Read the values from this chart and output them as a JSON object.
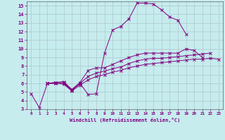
{
  "xlabel": "Windchill (Refroidissement éolien,°C)",
  "xlim": [
    -0.5,
    23.5
  ],
  "ylim": [
    3,
    15.5
  ],
  "xticks": [
    0,
    1,
    2,
    3,
    4,
    5,
    6,
    7,
    8,
    9,
    10,
    11,
    12,
    13,
    14,
    15,
    16,
    17,
    18,
    19,
    20,
    21,
    22,
    23
  ],
  "yticks": [
    3,
    4,
    5,
    6,
    7,
    8,
    9,
    10,
    11,
    12,
    13,
    14,
    15
  ],
  "bg_color": "#c6ecee",
  "line_color": "#800080",
  "grid_color": "#b0c8cc",
  "series": [
    {
      "x": [
        0,
        1,
        2,
        3,
        4,
        5,
        6,
        7,
        8,
        9,
        10,
        11,
        12,
        13,
        14,
        15,
        16,
        17,
        18,
        19
      ],
      "y": [
        4.8,
        3.2,
        6.0,
        6.1,
        6.1,
        5.2,
        6.0,
        4.7,
        4.8,
        9.5,
        12.2,
        12.6,
        13.5,
        15.3,
        15.3,
        15.2,
        14.5,
        13.7,
        13.3,
        11.7
      ]
    },
    {
      "x": [
        2,
        3,
        4,
        5,
        6,
        7,
        8,
        9,
        10,
        11,
        12,
        13,
        14,
        15,
        16,
        17,
        18,
        19,
        20,
        21
      ],
      "y": [
        6.0,
        6.1,
        6.2,
        5.3,
        6.1,
        7.5,
        7.8,
        7.8,
        8.2,
        8.6,
        9.0,
        9.3,
        9.5,
        9.5,
        9.5,
        9.5,
        9.5,
        10.0,
        9.8,
        9.0
      ]
    },
    {
      "x": [
        2,
        3,
        4,
        5,
        6,
        7,
        8,
        9,
        10,
        11,
        12,
        13,
        14,
        15,
        16,
        17,
        18,
        19,
        20,
        21,
        22
      ],
      "y": [
        6.0,
        6.0,
        6.0,
        5.2,
        6.0,
        6.8,
        7.2,
        7.4,
        7.7,
        7.9,
        8.3,
        8.6,
        8.8,
        8.9,
        8.9,
        9.0,
        9.1,
        9.2,
        9.3,
        9.4,
        9.5
      ]
    },
    {
      "x": [
        2,
        3,
        4,
        5,
        6,
        7,
        8,
        9,
        10,
        11,
        12,
        13,
        14,
        15,
        16,
        17,
        18,
        19,
        20,
        21,
        22,
        23
      ],
      "y": [
        6.0,
        6.0,
        5.9,
        5.1,
        5.8,
        6.4,
        6.8,
        7.0,
        7.3,
        7.5,
        7.8,
        8.0,
        8.2,
        8.3,
        8.4,
        8.5,
        8.6,
        8.7,
        8.8,
        8.8,
        8.9,
        8.8
      ]
    }
  ]
}
